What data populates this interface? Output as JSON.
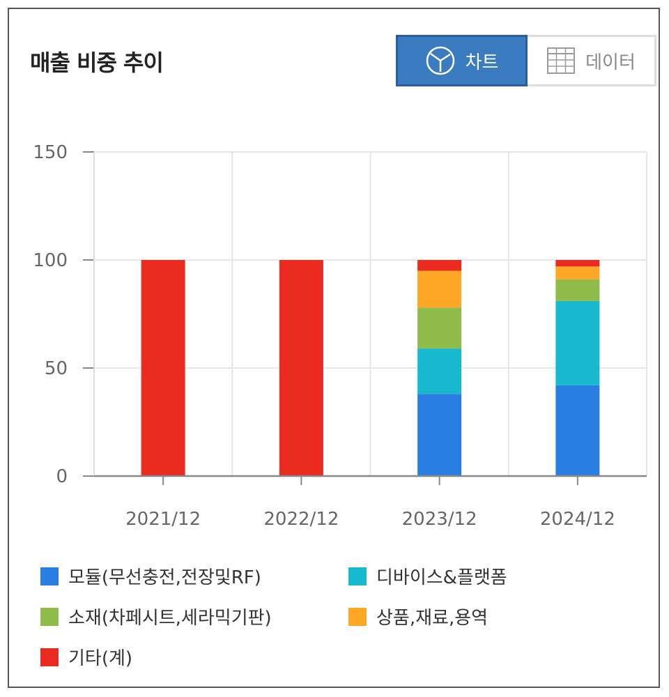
{
  "header": {
    "title": "매출 비중 추이",
    "chart_button_label": "차트",
    "data_button_label": "데이터",
    "chart_icon": "pie-chart-icon",
    "data_icon": "table-grid-icon"
  },
  "colors": {
    "module": "#2a7de1",
    "device": "#18b9cf",
    "material": "#8fbb4b",
    "goods": "#ffa726",
    "other": "#ea2b20",
    "active_toggle": "#3b7bbf"
  },
  "chart_data": {
    "type": "bar",
    "stacked": true,
    "categories": [
      "2021/12",
      "2022/12",
      "2023/12",
      "2024/12"
    ],
    "ylim": [
      0,
      150
    ],
    "yticks": [
      0,
      50,
      100,
      150
    ],
    "grid": true,
    "legend_placement": "bottom",
    "series": [
      {
        "name": "모듈(무선충전,전장및RF)",
        "color": "#2a7de1",
        "values": [
          0,
          0,
          38,
          42
        ]
      },
      {
        "name": "디바이스&플랫폼",
        "color": "#18b9cf",
        "values": [
          0,
          0,
          21,
          39
        ]
      },
      {
        "name": "소재(차페시트,세라믹기판)",
        "color": "#8fbb4b",
        "values": [
          0,
          0,
          19,
          10
        ]
      },
      {
        "name": "상품,재료,용역",
        "color": "#ffa726",
        "values": [
          0,
          0,
          17,
          6
        ]
      },
      {
        "name": "기타(계)",
        "color": "#ea2b20",
        "values": [
          100,
          100,
          5,
          3
        ]
      }
    ]
  }
}
